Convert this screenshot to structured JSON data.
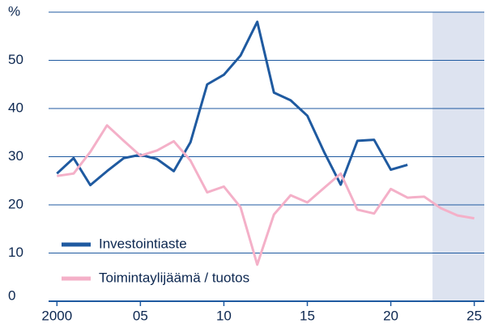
{
  "chart_data": {
    "type": "line",
    "x": [
      2000,
      2001,
      2002,
      2003,
      2004,
      2005,
      2006,
      2007,
      2008,
      2009,
      2010,
      2011,
      2012,
      2013,
      2014,
      2015,
      2016,
      2017,
      2018,
      2019,
      2020,
      2021,
      2022,
      2023,
      2024,
      2025
    ],
    "series": [
      {
        "name": "Investointiaste",
        "color": "#1f5aa0",
        "values": [
          26.5,
          29.7,
          24.1,
          27,
          29.7,
          30.4,
          29.5,
          27,
          33,
          45,
          47,
          51,
          58,
          43.3,
          41.7,
          38.5,
          31,
          24.2,
          33.3,
          33.5,
          27.3,
          28.3,
          null,
          null,
          null,
          null
        ]
      },
      {
        "name": "Toimintaylijäämä / tuotos",
        "color": "#f4b0c8",
        "values": [
          26,
          26.5,
          31,
          36.5,
          33.3,
          30.2,
          31.3,
          33.2,
          29.2,
          22.6,
          23.8,
          19.5,
          7.6,
          18,
          22,
          20.5,
          23.5,
          26.5,
          19,
          18.2,
          23.3,
          21.5,
          21.7,
          19.3,
          17.8,
          17.2
        ]
      }
    ],
    "xlim": [
      1999.5,
      2025.6
    ],
    "xticks": [
      2000,
      {
        "value": 2005,
        "label": "05"
      },
      {
        "value": 2010,
        "label": "10"
      },
      {
        "value": 2015,
        "label": "15"
      },
      {
        "value": 2020,
        "label": "20"
      },
      {
        "value": 2025,
        "label": "25"
      }
    ],
    "ylim": [
      0,
      60
    ],
    "yticks": [
      0,
      10,
      20,
      30,
      40,
      50,
      {
        "value": 60,
        "label": "%"
      }
    ],
    "grid": true,
    "shaded_xrange": [
      2022.5,
      2025.6
    ],
    "shade_color": "#dde3f0",
    "legend": "lower left"
  }
}
